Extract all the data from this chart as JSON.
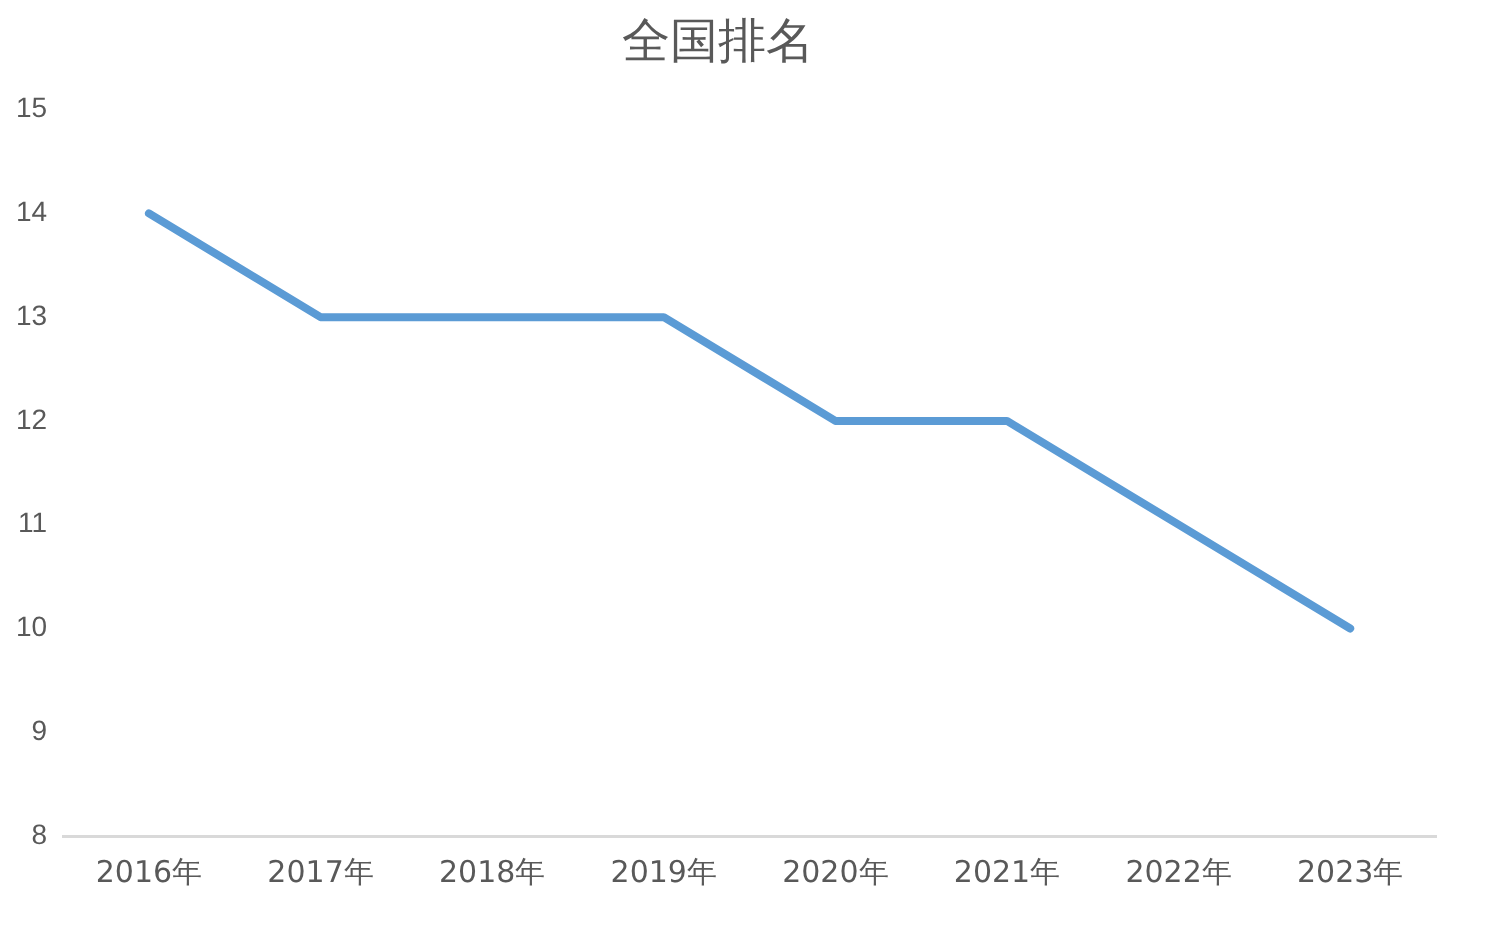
{
  "chart_data": {
    "type": "line",
    "title": "全国排名",
    "categories": [
      "2016年",
      "2017年",
      "2018年",
      "2019年",
      "2020年",
      "2021年",
      "2022年",
      "2023年"
    ],
    "values": [
      14,
      13,
      13,
      13,
      12,
      12,
      11,
      10
    ],
    "color": "#5b9bd5",
    "ylim": [
      8,
      15
    ],
    "yticks": [
      8,
      9,
      10,
      11,
      12,
      13,
      14,
      15
    ],
    "grid": false,
    "legend": false,
    "marker": "none",
    "line_style": "solid"
  }
}
